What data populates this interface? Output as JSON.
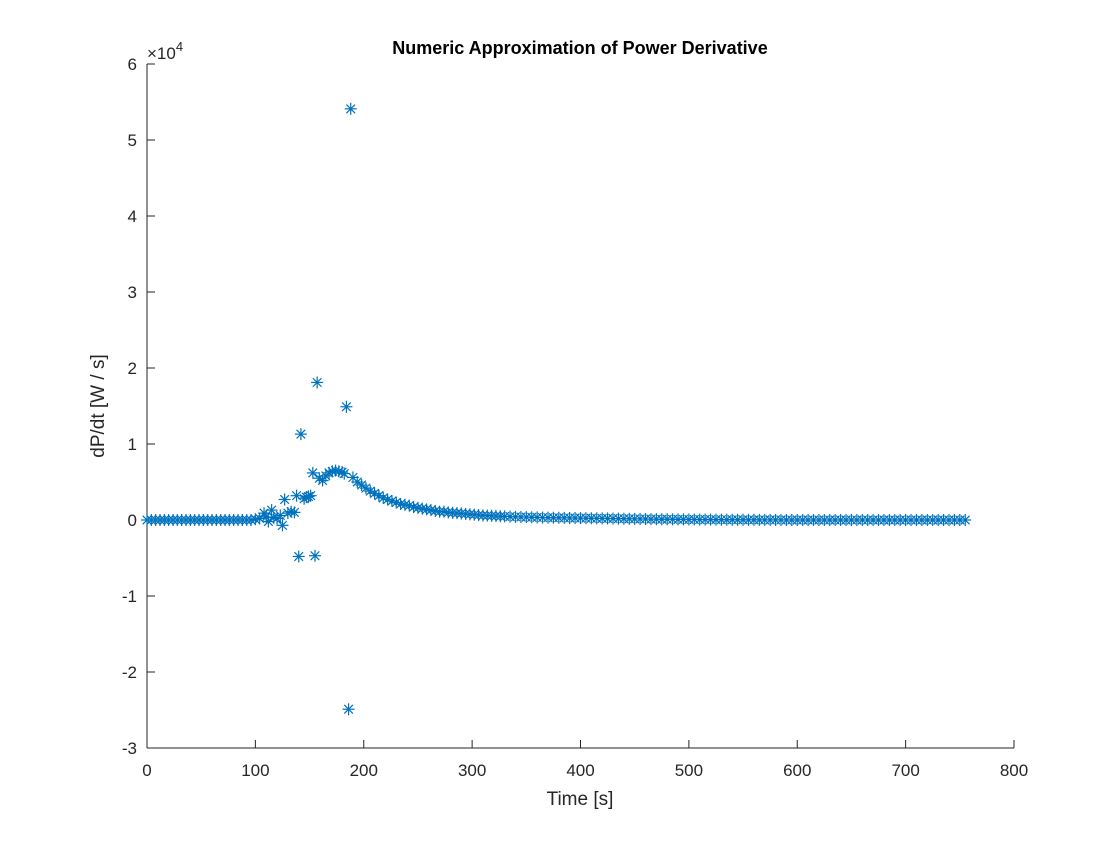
{
  "chart_data": {
    "type": "scatter",
    "title": "Numeric Approximation of Power Derivative",
    "xlabel": "Time [s]",
    "ylabel": "dP/dt [W / s]",
    "y_exponent_label": "×10",
    "y_exponent_power": "4",
    "xlim": [
      0,
      800
    ],
    "ylim": [
      -30000,
      60000
    ],
    "xticks": [
      0,
      100,
      200,
      300,
      400,
      500,
      600,
      700,
      800
    ],
    "xtick_labels": [
      "0",
      "100",
      "200",
      "300",
      "400",
      "500",
      "600",
      "700",
      "800"
    ],
    "yticks": [
      -30000,
      -20000,
      -10000,
      0,
      10000,
      20000,
      30000,
      40000,
      50000,
      60000
    ],
    "ytick_labels": [
      "-3",
      "-2",
      "-1",
      "0",
      "1",
      "2",
      "3",
      "4",
      "5",
      "6"
    ],
    "grid": false,
    "marker": "asterisk",
    "color": "#0072BD",
    "series": [
      {
        "x": [
          0,
          4,
          8,
          12,
          16,
          20,
          24,
          28,
          32,
          36,
          40,
          44,
          48,
          52,
          56,
          60,
          64,
          68,
          72,
          76,
          80,
          84,
          88,
          92,
          96,
          100,
          104,
          108,
          110,
          112,
          115,
          117,
          120,
          123,
          125,
          127,
          130,
          133,
          136,
          138,
          140,
          142,
          145,
          147,
          149,
          151,
          153,
          155,
          157,
          159,
          162,
          165,
          168,
          171,
          174,
          177,
          180,
          182,
          184,
          186,
          188,
          190,
          194,
          198,
          202,
          206,
          210,
          214,
          218,
          222,
          226,
          230,
          234,
          238,
          242,
          246,
          250,
          254,
          258,
          262,
          266,
          270,
          274,
          278,
          282,
          286,
          290,
          294,
          298,
          302,
          306,
          310,
          314,
          318,
          322,
          326,
          330,
          335,
          340,
          345,
          350,
          355,
          360,
          365,
          370,
          375,
          380,
          385,
          390,
          395,
          400,
          405,
          410,
          415,
          420,
          425,
          430,
          435,
          440,
          445,
          450,
          455,
          460,
          465,
          470,
          475,
          480,
          485,
          490,
          495,
          500,
          505,
          510,
          515,
          520,
          525,
          530,
          535,
          540,
          545,
          550,
          555,
          560,
          565,
          570,
          575,
          580,
          585,
          590,
          595,
          600,
          605,
          610,
          615,
          620,
          625,
          630,
          635,
          640,
          645,
          650,
          655,
          660,
          665,
          670,
          675,
          680,
          685,
          690,
          695,
          700,
          705,
          710,
          715,
          720,
          725,
          730,
          735,
          740,
          745,
          750,
          755
        ],
        "y": [
          0,
          0,
          0,
          0,
          0,
          0,
          0,
          0,
          0,
          0,
          0,
          0,
          0,
          0,
          0,
          0,
          0,
          0,
          0,
          0,
          0,
          0,
          0,
          0,
          0,
          100,
          200,
          900,
          400,
          -200,
          1300,
          300,
          200,
          600,
          -700,
          2700,
          900,
          1100,
          1000,
          3200,
          -4800,
          11300,
          2800,
          3000,
          3100,
          3200,
          6200,
          -4700,
          18100,
          5500,
          5200,
          5800,
          6200,
          6400,
          6500,
          6400,
          6300,
          6100,
          14900,
          -24900,
          54100,
          5600,
          5000,
          4600,
          4200,
          3800,
          3500,
          3200,
          2900,
          2700,
          2500,
          2300,
          2100,
          2000,
          1900,
          1700,
          1600,
          1500,
          1400,
          1300,
          1200,
          1100,
          1100,
          1000,
          950,
          900,
          850,
          800,
          750,
          700,
          650,
          600,
          580,
          550,
          520,
          500,
          480,
          450,
          420,
          400,
          380,
          360,
          340,
          320,
          310,
          300,
          290,
          280,
          270,
          260,
          250,
          240,
          230,
          220,
          210,
          200,
          190,
          180,
          170,
          160,
          150,
          140,
          130,
          120,
          110,
          100,
          100,
          90,
          80,
          80,
          70,
          70,
          60,
          60,
          50,
          50,
          40,
          40,
          30,
          30,
          30,
          20,
          20,
          20,
          10,
          10,
          10,
          10,
          0,
          0,
          0,
          0,
          0,
          0,
          0,
          0,
          0,
          0,
          0,
          0,
          0,
          0,
          0,
          0,
          0,
          0,
          0,
          0,
          0,
          0,
          0,
          0,
          0,
          0,
          0,
          0,
          0,
          0,
          0,
          0,
          0,
          0
        ]
      }
    ]
  }
}
